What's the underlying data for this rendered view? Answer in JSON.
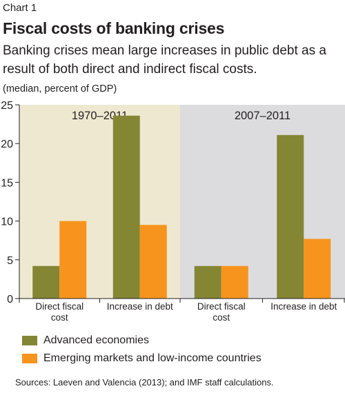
{
  "header": {
    "label": "Chart 1",
    "title": "Fiscal costs of banking crises",
    "subtitle": "Banking crises mean large increases in public debt as a result of both direct and indirect fiscal costs.",
    "units": "(median, percent of GDP)"
  },
  "colors": {
    "advanced": "#848634",
    "emerging": "#f7941d",
    "panel_left_bg": "#efe8d1",
    "panel_right_bg": "#dcdcdf",
    "axis": "#231f20"
  },
  "chart_data": {
    "type": "bar",
    "ylim": [
      0,
      25
    ],
    "yticks": [
      "0",
      "5",
      "10",
      "15",
      "20",
      "25"
    ],
    "grid": false,
    "legend_position": "bottom-left",
    "panels": [
      {
        "title": "1970–2011",
        "categories": [
          "Direct fiscal cost",
          "Increase in debt"
        ],
        "series": [
          {
            "name": "Advanced economies",
            "values": [
              4.2,
              23.6
            ]
          },
          {
            "name": "Emerging markets and low-income countries",
            "values": [
              10.0,
              9.5
            ]
          }
        ]
      },
      {
        "title": "2007–2011",
        "categories": [
          "Direct fiscal cost",
          "Increase in debt"
        ],
        "series": [
          {
            "name": "Advanced economies",
            "values": [
              4.2,
              21.1
            ]
          },
          {
            "name": "Emerging markets and low-income countries",
            "values": [
              4.2,
              7.7
            ]
          }
        ]
      }
    ]
  },
  "legend": [
    {
      "label": "Advanced economies"
    },
    {
      "label": "Emerging markets and low-income countries"
    }
  ],
  "source": "Sources: Laeven and Valencia (2013); and IMF staff calculations."
}
